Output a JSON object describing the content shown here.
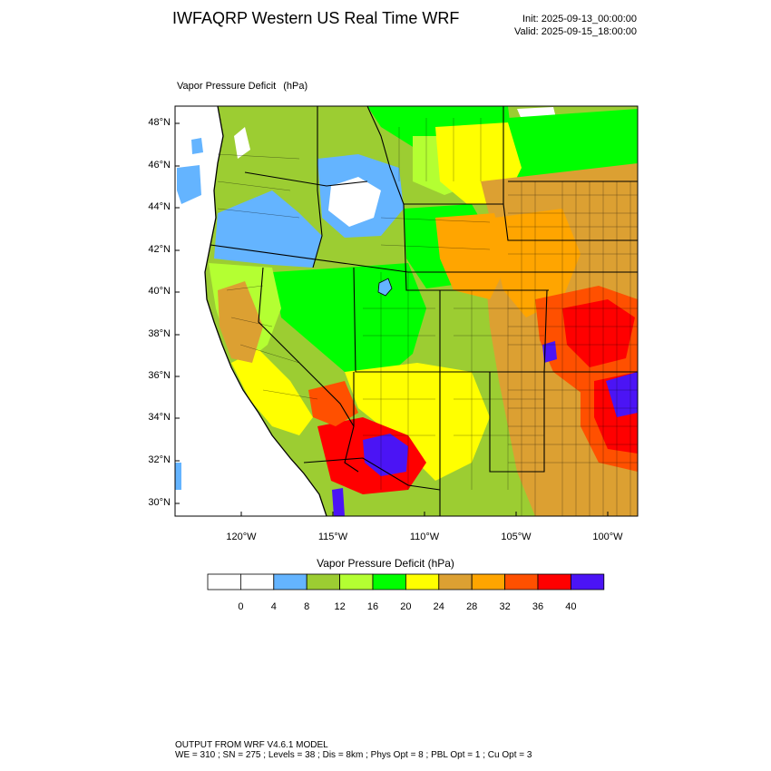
{
  "title": "IWFAQRP Western US Real Time WRF",
  "init": "Init: 2025-09-13_00:00:00",
  "valid": "Valid: 2025-09-15_18:00:00",
  "field_name": "Vapor Pressure Deficit",
  "field_unit": "(hPa)",
  "lat_labels": [
    "48°N",
    "46°N",
    "44°N",
    "42°N",
    "40°N",
    "38°N",
    "36°N",
    "34°N",
    "32°N",
    "30°N"
  ],
  "lon_labels": [
    "120°W",
    "115°W",
    "110°W",
    "105°W",
    "100°W"
  ],
  "colorbar": {
    "title": "Vapor Pressure Deficit  (hPa)",
    "bins": [
      "#ffffff",
      "#ffffff",
      "#64b4ff",
      "#9ccd32",
      "#b4ff32",
      "#00ff00",
      "#ffff00",
      "#dca032",
      "#ffa500",
      "#ff5000",
      "#ff0000",
      "#4b14f5"
    ],
    "labels": [
      "0",
      "4",
      "8",
      "12",
      "16",
      "20",
      "24",
      "28",
      "32",
      "36",
      "40"
    ]
  },
  "footer": {
    "line1": "OUTPUT FROM WRF V4.6.1 MODEL",
    "line2": "WE = 310 ; SN = 275 ; Levels = 38 ; Dis = 8km ; Phys Opt = 8 ; PBL Opt = 1 ; Cu Opt = 3"
  },
  "colors": {
    "white": "#ffffff",
    "blue": "#64b4ff",
    "olive": "#9ccd32",
    "lime": "#b4ff32",
    "green": "#00ff00",
    "yellow": "#ffff00",
    "tan": "#dca032",
    "orange": "#ffa500",
    "redorange": "#ff5000",
    "red": "#ff0000",
    "purple": "#4b14f5"
  }
}
